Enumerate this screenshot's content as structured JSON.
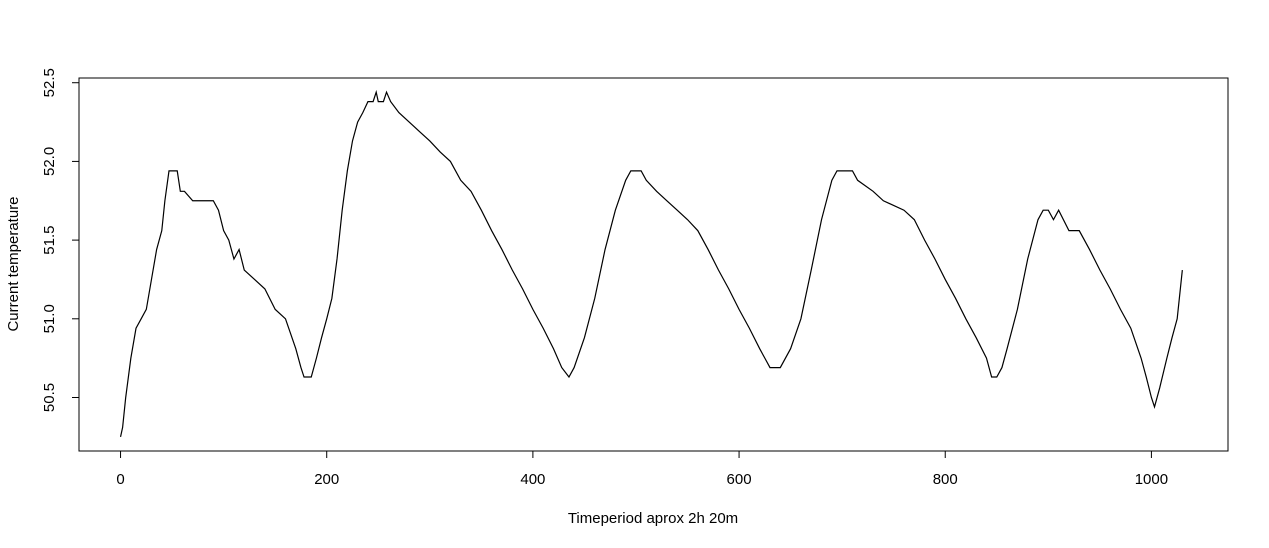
{
  "chart_data": {
    "type": "line",
    "x_label": "Timeperiod aprox 2h 20m",
    "y_label": "Current temperature",
    "color": "#000000",
    "xlim": [
      -40.3,
      1074.3
    ],
    "ylim": [
      50.16,
      52.53
    ],
    "xticks": [
      0,
      200,
      400,
      600,
      800,
      1000
    ],
    "yticks": [
      50.5,
      {
        "value": 51,
        "label": "51.0"
      },
      51.5,
      {
        "value": 52,
        "label": "52.0"
      },
      52.5
    ],
    "x": [
      0,
      2,
      5,
      10,
      15,
      20,
      25,
      30,
      35,
      40,
      43,
      47,
      55,
      58,
      62,
      70,
      90,
      95,
      100,
      105,
      110,
      115,
      120,
      130,
      140,
      150,
      160,
      170,
      175,
      178,
      185,
      190,
      195,
      200,
      205,
      210,
      215,
      220,
      225,
      230,
      235,
      240,
      245,
      248,
      250,
      255,
      258,
      262,
      270,
      280,
      290,
      300,
      310,
      320,
      330,
      340,
      350,
      360,
      370,
      380,
      390,
      400,
      410,
      420,
      428,
      435,
      440,
      450,
      460,
      470,
      480,
      490,
      495,
      505,
      510,
      520,
      530,
      540,
      550,
      560,
      570,
      580,
      590,
      600,
      610,
      620,
      625,
      630,
      640,
      650,
      660,
      670,
      680,
      690,
      695,
      710,
      715,
      730,
      740,
      760,
      770,
      780,
      790,
      800,
      810,
      820,
      830,
      840,
      845,
      850,
      855,
      860,
      870,
      880,
      890,
      895,
      900,
      905,
      910,
      920,
      930,
      940,
      950,
      960,
      970,
      980,
      990,
      995,
      1000,
      1003,
      1008,
      1015,
      1020,
      1025,
      1030
    ],
    "values": [
      50.25,
      50.31,
      50.5,
      50.75,
      50.94,
      51.0,
      51.06,
      51.25,
      51.44,
      51.56,
      51.75,
      51.94,
      51.94,
      51.81,
      51.81,
      51.75,
      51.75,
      51.69,
      51.56,
      51.5,
      51.38,
      51.44,
      51.31,
      51.25,
      51.19,
      51.06,
      51.0,
      50.81,
      50.69,
      50.63,
      50.63,
      50.75,
      50.88,
      51.0,
      51.13,
      51.38,
      51.69,
      51.94,
      52.13,
      52.25,
      52.31,
      52.38,
      52.38,
      52.44,
      52.38,
      52.38,
      52.44,
      52.38,
      52.31,
      52.25,
      52.19,
      52.13,
      52.06,
      52.0,
      51.88,
      51.81,
      51.69,
      51.56,
      51.44,
      51.31,
      51.19,
      51.06,
      50.94,
      50.81,
      50.69,
      50.63,
      50.69,
      50.88,
      51.13,
      51.44,
      51.69,
      51.88,
      51.94,
      51.94,
      51.88,
      51.81,
      51.75,
      51.69,
      51.63,
      51.56,
      51.44,
      51.31,
      51.19,
      51.06,
      50.94,
      50.81,
      50.75,
      50.69,
      50.69,
      50.81,
      51.0,
      51.31,
      51.63,
      51.88,
      51.94,
      51.94,
      51.88,
      51.81,
      51.75,
      51.69,
      51.63,
      51.5,
      51.38,
      51.25,
      51.13,
      51.0,
      50.88,
      50.75,
      50.63,
      50.63,
      50.69,
      50.81,
      51.06,
      51.38,
      51.63,
      51.69,
      51.69,
      51.63,
      51.69,
      51.56,
      51.56,
      51.44,
      51.31,
      51.19,
      51.06,
      50.94,
      50.75,
      50.63,
      50.5,
      50.44,
      50.56,
      50.75,
      50.88,
      51.0,
      51.31
    ]
  }
}
